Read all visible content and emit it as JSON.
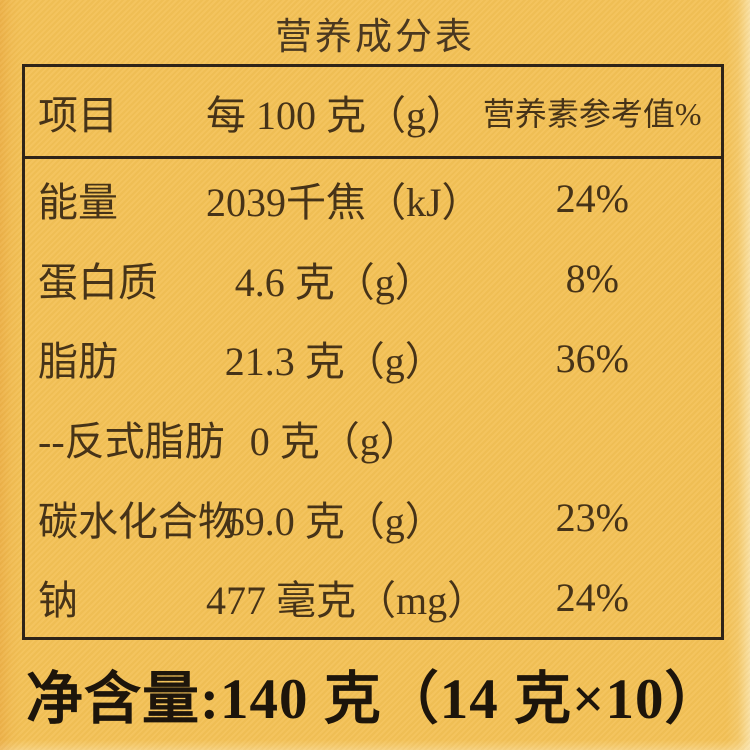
{
  "title": "营养成分表",
  "table": {
    "headers": {
      "item": "项目",
      "amount": "每 100 克（g）",
      "nrv": "营养素参考值%"
    },
    "rows": [
      {
        "item": "能量",
        "amount": "2039千焦（kJ）",
        "nrv": "24%"
      },
      {
        "item": "蛋白质",
        "amount": "4.6 克（g）",
        "nrv": "8%"
      },
      {
        "item": "脂肪",
        "amount": "21.3 克（g）",
        "nrv": "36%"
      },
      {
        "item": "--反式脂肪",
        "amount": "0 克（g）",
        "nrv": ""
      },
      {
        "item": "碳水化合物",
        "amount": "69.0 克（g）",
        "nrv": "23%"
      },
      {
        "item": "钠",
        "amount": "477 毫克（mg）",
        "nrv": "24%"
      }
    ]
  },
  "footer": {
    "net_content": "净含量:140 克（14 克×10）"
  },
  "colors": {
    "background": "#f3c156",
    "table_border": "#2e2418",
    "table_text": "#463318",
    "footer_text": "#1d150b"
  }
}
